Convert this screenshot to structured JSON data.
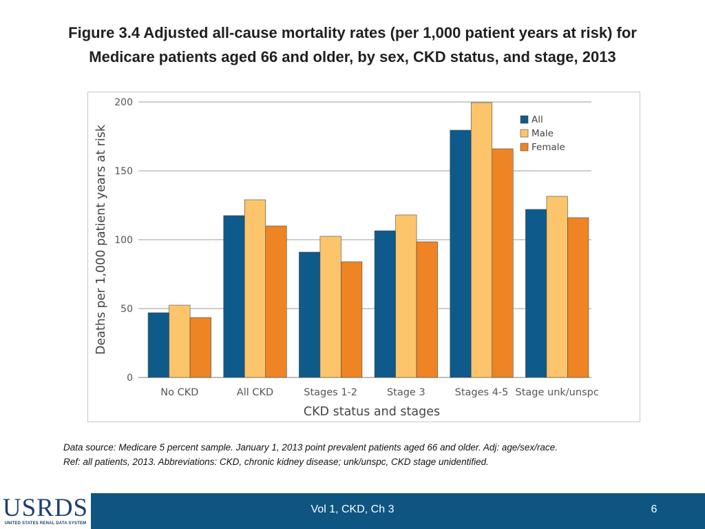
{
  "title_line1": "Figure 3.4  Adjusted all-cause mortality rates (per 1,000 patient years at risk) for",
  "title_line2": "Medicare patients aged 66 and older, by sex, CKD status, and stage, 2013",
  "chart_data": {
    "type": "bar",
    "categories": [
      "No CKD",
      "All CKD",
      "Stages 1-2",
      "Stage 3",
      "Stages 4-5",
      "Stage unk/unspc"
    ],
    "series": [
      {
        "name": "All",
        "color": "#0e5a8a",
        "values": [
          47,
          117.5,
          91,
          106.5,
          179.5,
          122
        ]
      },
      {
        "name": "Male",
        "color": "#fcc46b",
        "values": [
          52.5,
          129,
          102.5,
          118,
          199.5,
          131.5
        ]
      },
      {
        "name": "Female",
        "color": "#ee8424",
        "values": [
          43.5,
          110,
          84,
          98.5,
          166,
          116
        ]
      }
    ],
    "title": "",
    "xlabel": "CKD status and stages",
    "ylabel": "Deaths per 1,000 patient years at risk",
    "ylim": [
      0,
      200
    ],
    "yticks": [
      0,
      50,
      100,
      150,
      200
    ],
    "grid": true,
    "legend_position": "top-right"
  },
  "note_line1": "Data source: Medicare 5 percent sample. January 1, 2013 point prevalent patients aged 66 and older. Adj: age/sex/race.",
  "note_line2": "Ref: all patients, 2013. Abbreviations: CKD, chronic kidney disease; unk/unspc, CKD stage unidentified.",
  "footer": {
    "logo": "USRDS",
    "logo_subtitle": "UNITED STATES RENAL DATA SYSTEM",
    "center": "Vol 1, CKD, Ch 3",
    "page": "6"
  }
}
